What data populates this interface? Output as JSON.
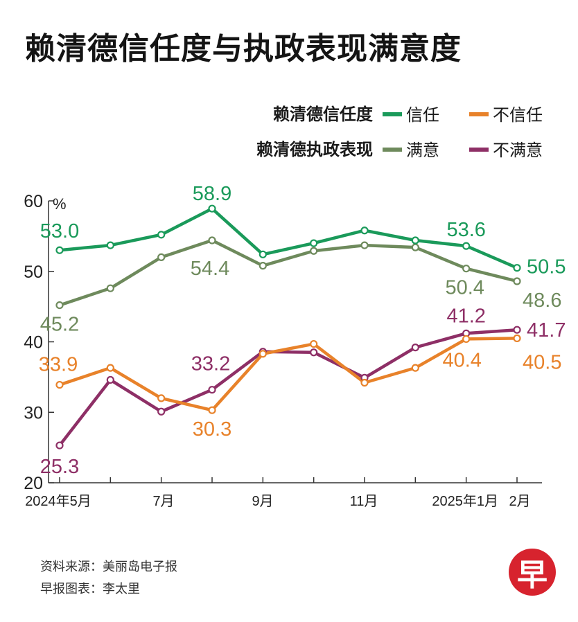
{
  "title": "赖清德信任度与执政表现满意度",
  "source": "资料来源：美丽岛电子报",
  "credit": "早报图表：李太里",
  "logo_char": "早",
  "chart_data": {
    "type": "line",
    "title": "赖清德信任度与执政表现满意度",
    "ylabel": "%",
    "ylim": [
      20,
      60
    ],
    "yticks": [
      "20",
      "30",
      "40",
      "50",
      "60"
    ],
    "x_labels": [
      "2024年5月",
      "",
      "7月",
      "",
      "9月",
      "",
      "11月",
      "",
      "2025年1月",
      "2月"
    ],
    "legend": {
      "group1_label": "赖清德信任度",
      "group2_label": "赖清德执政表现"
    },
    "series": [
      {
        "key": "trust",
        "name": "信任",
        "color": "#1a9a5a",
        "values": [
          53.0,
          53.7,
          55.2,
          58.9,
          52.4,
          54.0,
          55.8,
          54.4,
          53.6,
          50.5
        ],
        "labels": [
          {
            "i": 0,
            "text": "53.0"
          },
          {
            "i": 3,
            "text": "58.9"
          },
          {
            "i": 8,
            "text": "53.6"
          },
          {
            "i": 9,
            "text": "50.5"
          }
        ]
      },
      {
        "key": "distrust",
        "name": "不信任",
        "color": "#e8822a",
        "values": [
          33.9,
          36.3,
          32.0,
          30.3,
          38.3,
          39.7,
          34.2,
          36.3,
          40.4,
          40.5
        ],
        "labels": [
          {
            "i": 0,
            "text": "33.9"
          },
          {
            "i": 3,
            "text": "30.3"
          },
          {
            "i": 8,
            "text": "40.4"
          },
          {
            "i": 9,
            "text": "40.5"
          }
        ]
      },
      {
        "key": "satisfied",
        "name": "满意",
        "color": "#6e8a5c",
        "values": [
          45.2,
          47.6,
          52.0,
          54.4,
          50.8,
          52.9,
          53.7,
          53.4,
          50.4,
          48.6
        ],
        "labels": [
          {
            "i": 0,
            "text": "45.2"
          },
          {
            "i": 3,
            "text": "54.4"
          },
          {
            "i": 8,
            "text": "50.4"
          },
          {
            "i": 9,
            "text": "48.6"
          }
        ]
      },
      {
        "key": "dissatisfied",
        "name": "不满意",
        "color": "#8e2f66",
        "values": [
          25.3,
          34.6,
          30.1,
          33.2,
          38.6,
          38.5,
          34.9,
          39.2,
          41.2,
          41.7
        ],
        "labels": [
          {
            "i": 0,
            "text": "25.3"
          },
          {
            "i": 3,
            "text": "33.2"
          },
          {
            "i": 8,
            "text": "41.2"
          },
          {
            "i": 9,
            "text": "41.7"
          }
        ]
      }
    ]
  }
}
